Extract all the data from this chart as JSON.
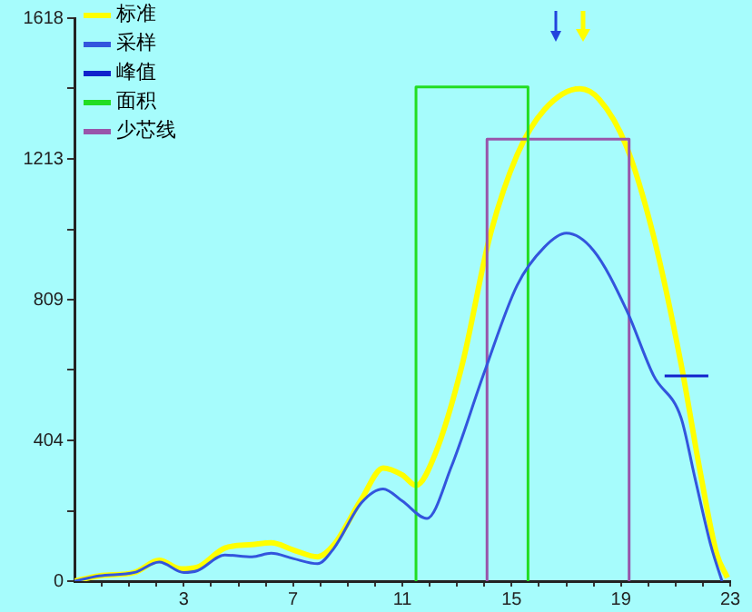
{
  "chart_data": {
    "type": "line",
    "xlim": [
      -1,
      23
    ],
    "ylim": [
      0,
      1618
    ],
    "xticks": [
      {
        "value": 0,
        "label": null
      },
      {
        "value": 1,
        "label": null
      },
      {
        "value": 2,
        "label": null
      },
      3,
      {
        "value": 4,
        "label": null
      },
      {
        "value": 5,
        "label": null
      },
      {
        "value": 6,
        "label": null
      },
      7,
      {
        "value": 8,
        "label": null
      },
      {
        "value": 9,
        "label": null
      },
      {
        "value": 10,
        "label": null
      },
      11,
      {
        "value": 12,
        "label": null
      },
      {
        "value": 13,
        "label": null
      },
      {
        "value": 14,
        "label": null
      },
      15,
      {
        "value": 16,
        "label": null
      },
      {
        "value": 17,
        "label": null
      },
      {
        "value": 18,
        "label": null
      },
      19,
      {
        "value": 20,
        "label": null
      },
      {
        "value": 21,
        "label": null
      },
      {
        "value": 22,
        "label": null
      },
      23
    ],
    "yticks": [
      0,
      {
        "value": 202,
        "label": null
      },
      404,
      {
        "value": 607,
        "label": null
      },
      809,
      {
        "value": 1011,
        "label": null
      },
      1213,
      {
        "value": 1416,
        "label": null
      },
      1618
    ],
    "grid": false,
    "legend": "top left",
    "marker": "none",
    "series": [
      {
        "name": "标准",
        "color": "#ffff00",
        "x": [
          -1,
          -0.1,
          1.2,
          2.1,
          2.9,
          3.5,
          4.5,
          5.5,
          6.2,
          7,
          7.9,
          8.5,
          9.5,
          10.3,
          11,
          11.5,
          12.2,
          13.2,
          14.2,
          15.2,
          16.2,
          17.5,
          18.2,
          19.2,
          20.2,
          21.2,
          21.9,
          22.5,
          22.9
        ],
        "values": [
          0,
          15,
          25,
          60,
          35,
          40,
          95,
          105,
          110,
          90,
          70,
          105,
          235,
          325,
          305,
          275,
          365,
          625,
          990,
          1225,
          1355,
          1415,
          1385,
          1250,
          990,
          625,
          315,
          80,
          10
        ]
      },
      {
        "name": "采样",
        "color": "#3355dd",
        "x": [
          -1,
          -0.1,
          1.2,
          2.1,
          3,
          3.5,
          4.5,
          5.5,
          6.2,
          7,
          7.9,
          8.5,
          9.5,
          10.3,
          11,
          11.9,
          12.8,
          14,
          15.2,
          16.2,
          17,
          18,
          19.2,
          20.2,
          21.2,
          21.7,
          22.3,
          22.7
        ],
        "values": [
          0,
          15,
          25,
          55,
          25,
          30,
          75,
          70,
          80,
          65,
          50,
          95,
          225,
          265,
          230,
          180,
          330,
          600,
          850,
          960,
          1000,
          950,
          780,
          590,
          470,
          300,
          100,
          0
        ]
      },
      {
        "name": "峰值",
        "color": "#1122cc",
        "x": [
          20.6,
          22.2
        ],
        "values": [
          590,
          590
        ]
      },
      {
        "name": "面积",
        "color": "#22dd22",
        "x": [
          11.5,
          11.5,
          15.6,
          15.6
        ],
        "values": [
          0,
          1420,
          1420,
          0
        ]
      },
      {
        "name": "少芯线",
        "color": "#9955aa",
        "x": [
          14.1,
          14.1,
          19.3,
          19.3
        ],
        "values": [
          0,
          1270,
          1270,
          0
        ]
      }
    ]
  }
}
